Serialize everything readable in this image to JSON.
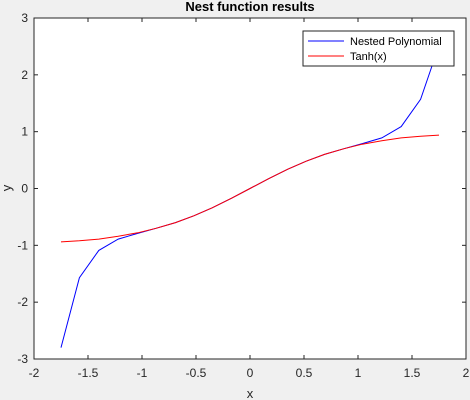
{
  "chart_data": {
    "type": "line",
    "title": "Nest function results",
    "xlabel": "x",
    "ylabel": "y",
    "xlim": [
      -2,
      2
    ],
    "ylim": [
      -3,
      3
    ],
    "xticks": [
      -2,
      -1.5,
      -1,
      -0.5,
      0,
      0.5,
      1,
      1.5,
      2
    ],
    "yticks": [
      -3,
      -2,
      -1,
      0,
      1,
      2,
      3
    ],
    "xtick_labels": [
      "-2",
      "-1.5",
      "-1",
      "-0.5",
      "0",
      "0.5",
      "1",
      "1.5",
      "2"
    ],
    "ytick_labels": [
      "-3",
      "-2",
      "-1",
      "0",
      "1",
      "2",
      "3"
    ],
    "grid": false,
    "legend_position": "top-right",
    "series": [
      {
        "name": "Nested Polynomial",
        "color": "#0000ff",
        "x": [
          -1.75,
          -1.58,
          -1.4,
          -1.22,
          -1.04,
          -0.87,
          -0.69,
          -0.52,
          -0.35,
          -0.17,
          0.0,
          0.17,
          0.35,
          0.52,
          0.69,
          0.87,
          1.04,
          1.22,
          1.4,
          1.58,
          1.72
        ],
        "y": [
          -2.8,
          -1.57,
          -1.09,
          -0.89,
          -0.79,
          -0.7,
          -0.6,
          -0.48,
          -0.34,
          -0.17,
          0.0,
          0.17,
          0.34,
          0.48,
          0.6,
          0.7,
          0.79,
          0.89,
          1.09,
          1.57,
          2.35
        ]
      },
      {
        "name": "Tanh(x)",
        "color": "#ff0000",
        "x": [
          -1.75,
          -1.58,
          -1.4,
          -1.22,
          -1.04,
          -0.87,
          -0.69,
          -0.52,
          -0.35,
          -0.17,
          0.0,
          0.17,
          0.35,
          0.52,
          0.69,
          0.87,
          1.04,
          1.22,
          1.4,
          1.58,
          1.75
        ],
        "y": [
          -0.94,
          -0.92,
          -0.89,
          -0.84,
          -0.78,
          -0.7,
          -0.6,
          -0.48,
          -0.34,
          -0.17,
          0.0,
          0.17,
          0.34,
          0.48,
          0.6,
          0.7,
          0.78,
          0.84,
          0.89,
          0.92,
          0.94
        ]
      }
    ]
  }
}
